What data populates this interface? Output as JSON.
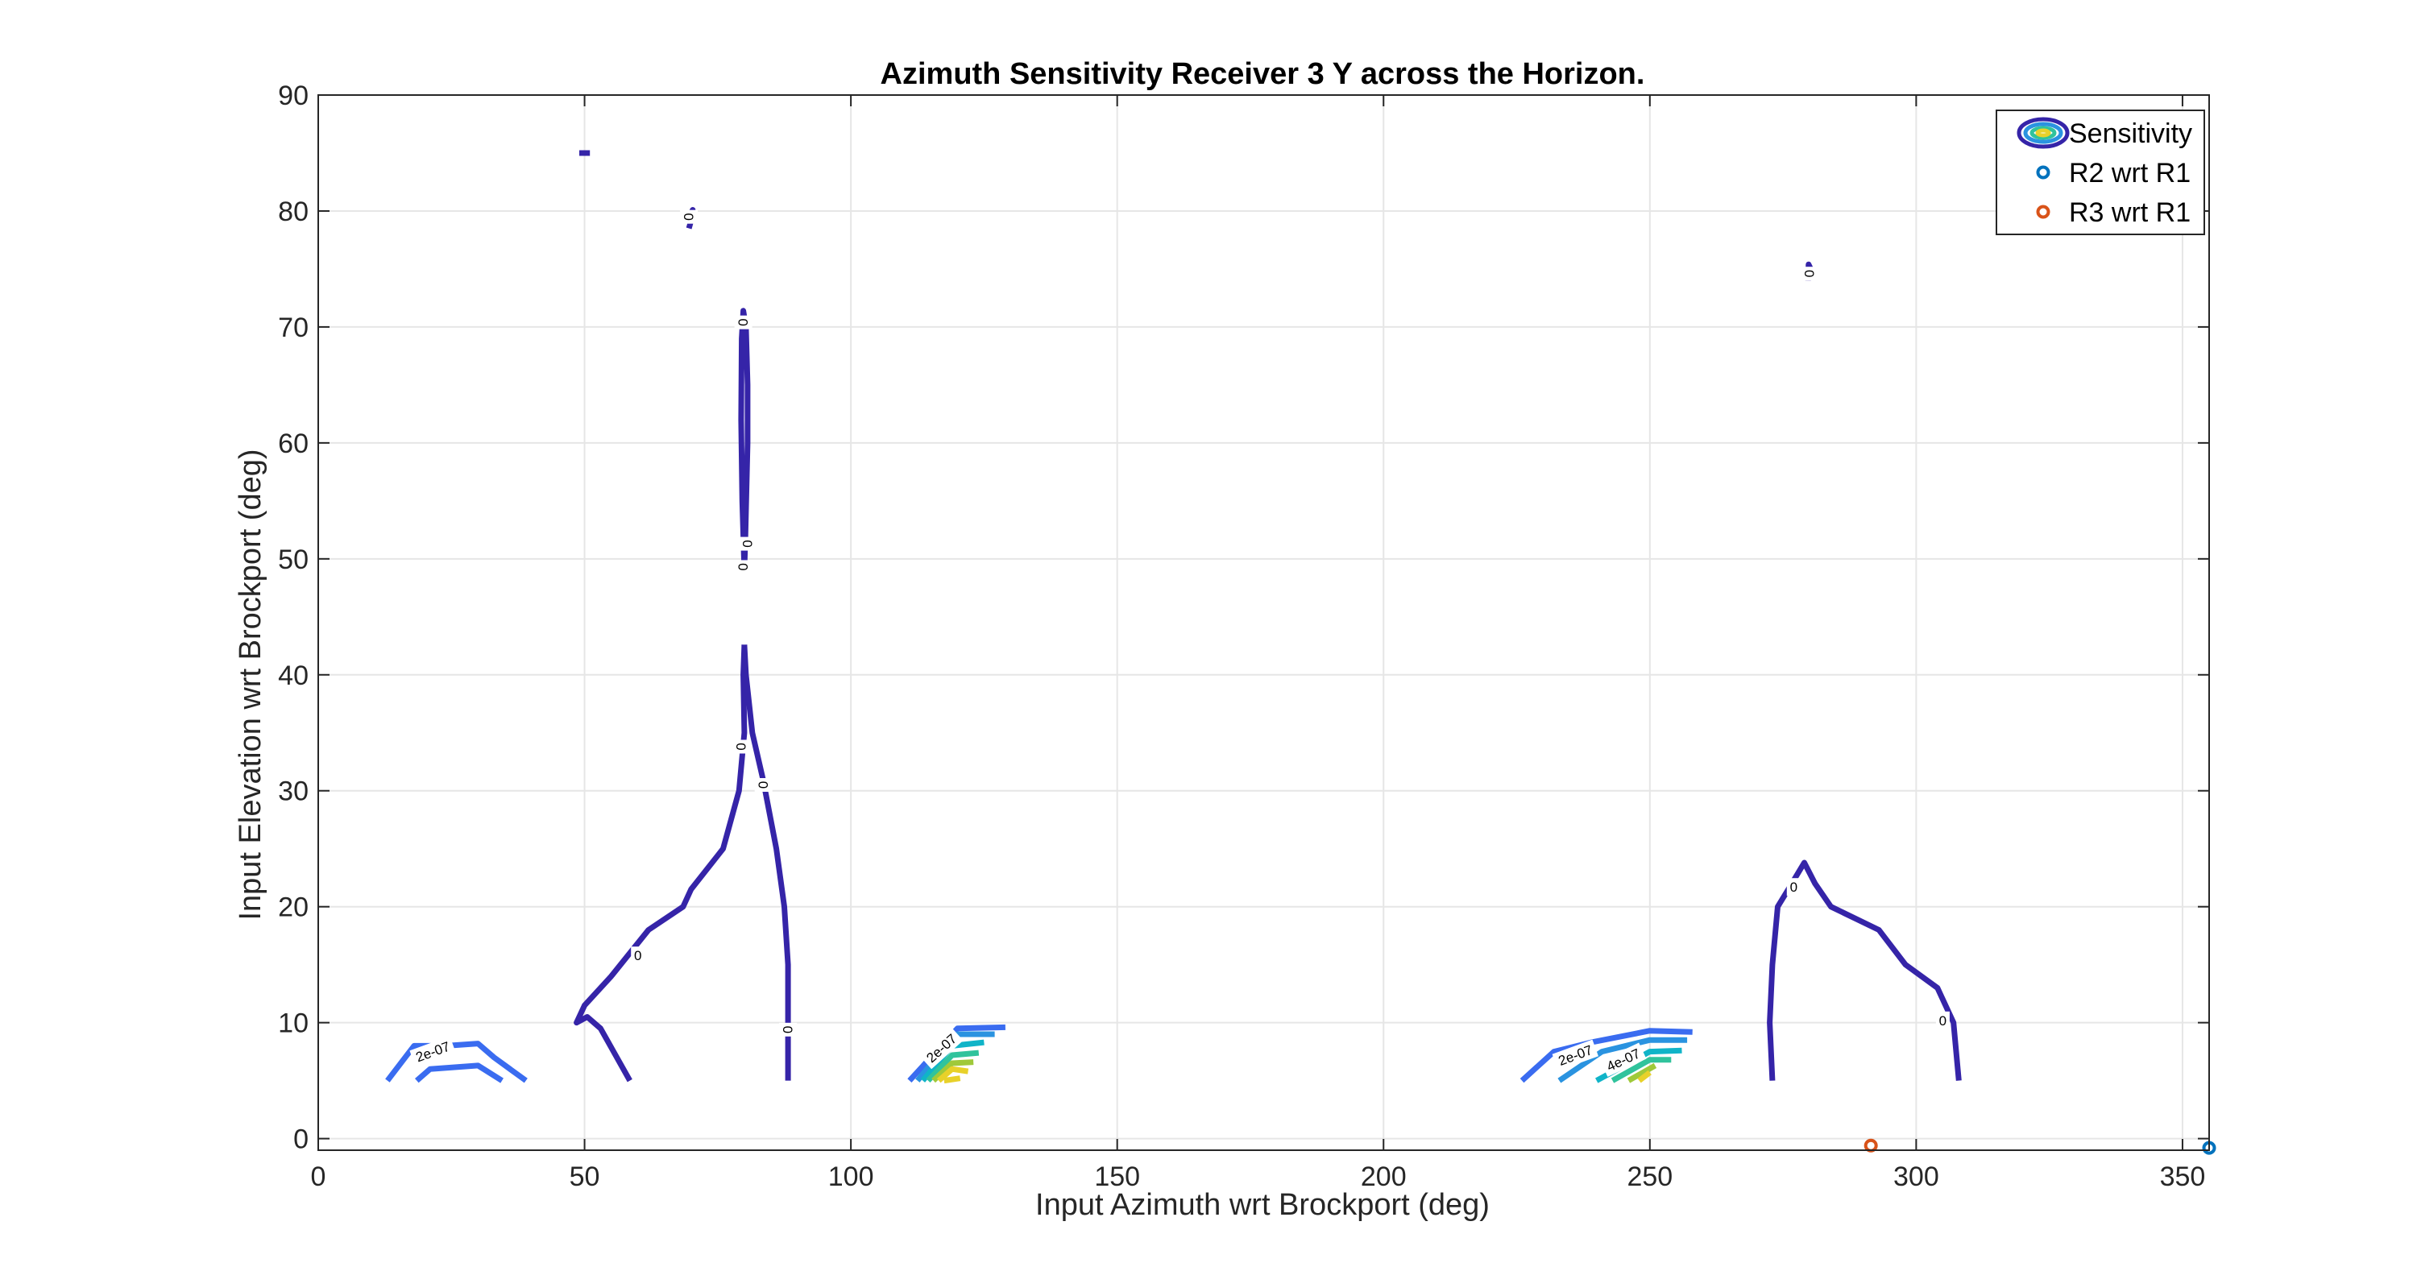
{
  "chart_data": {
    "type": "contour",
    "title": "Azimuth Sensitivity Receiver 3 Y across the Horizon.",
    "xlabel": "Input Azimuth wrt Brockport (deg)",
    "ylabel": "Input Elevation wrt Brockport (deg)",
    "xlim": [
      0,
      355
    ],
    "ylim": [
      -1,
      90
    ],
    "xticks": [
      0,
      50,
      100,
      150,
      200,
      250,
      300,
      350
    ],
    "yticks": [
      0,
      10,
      20,
      30,
      40,
      50,
      60,
      70,
      80,
      90
    ],
    "grid": true,
    "legend_position": "top-right",
    "legend": [
      {
        "name": "Sensitivity",
        "kind": "contour"
      },
      {
        "name": "R2 wrt R1",
        "kind": "marker",
        "color": "#0072BD"
      },
      {
        "name": "R3 wrt R1",
        "kind": "marker",
        "color": "#D95319"
      }
    ],
    "colors": {
      "zero": "#3524A8",
      "c1": "#3A6CF0",
      "c2": "#2A93E0",
      "c3": "#10B4C8",
      "c4": "#30C39C",
      "c5": "#9FC93A",
      "c6": "#E8D12A",
      "r2": "#0072BD",
      "r3": "#D95319"
    },
    "contours": [
      {
        "level": "0",
        "color_key": "zero",
        "points": [
          [
            49,
            85
          ],
          [
            51,
            85
          ]
        ]
      },
      {
        "level": "0",
        "color_key": "zero",
        "points": [
          [
            69.5,
            79.3
          ],
          [
            70.3,
            80.1
          ],
          [
            70.2,
            79.5
          ],
          [
            69.6,
            78.5
          ]
        ]
      },
      {
        "level": "0",
        "color_key": "zero",
        "points": [
          [
            80,
            49
          ],
          [
            80.2,
            52
          ],
          [
            80.6,
            60
          ],
          [
            80.6,
            65
          ],
          [
            80.3,
            70
          ],
          [
            79.8,
            71.4
          ],
          [
            79.5,
            69
          ],
          [
            79.4,
            62
          ],
          [
            79.6,
            55
          ],
          [
            80,
            49
          ]
        ]
      },
      {
        "level": "0",
        "color_key": "zero",
        "points": [
          [
            58.5,
            5
          ],
          [
            53,
            9.5
          ],
          [
            50.5,
            10.5
          ],
          [
            48.5,
            10
          ],
          [
            50,
            11.5
          ],
          [
            55,
            14
          ],
          [
            62,
            18
          ],
          [
            68.5,
            20
          ],
          [
            70,
            21.5
          ],
          [
            76,
            25
          ],
          [
            79,
            30
          ],
          [
            80,
            35
          ],
          [
            79.8,
            40
          ],
          [
            80,
            42.6
          ]
        ]
      },
      {
        "level": "0",
        "color_key": "zero",
        "points": [
          [
            80,
            42.6
          ],
          [
            80.3,
            40
          ],
          [
            81.5,
            35
          ],
          [
            83.5,
            31
          ],
          [
            86,
            25
          ],
          [
            87.5,
            20
          ],
          [
            88.2,
            15
          ],
          [
            88.2,
            10
          ],
          [
            88.2,
            5
          ]
        ]
      },
      {
        "level": "0",
        "color_key": "zero",
        "points": [
          [
            273,
            5
          ],
          [
            272.5,
            10
          ],
          [
            273,
            15
          ],
          [
            274,
            20
          ],
          [
            276,
            21.5
          ],
          [
            279,
            23.8
          ],
          [
            281,
            22
          ],
          [
            284,
            20
          ],
          [
            293,
            18
          ],
          [
            298,
            15
          ],
          [
            304,
            13
          ],
          [
            307,
            10
          ],
          [
            308,
            5
          ]
        ]
      },
      {
        "level": "0",
        "color_key": "zero",
        "points": [
          [
            279.7,
            74
          ],
          [
            279.8,
            75.4
          ],
          [
            280.2,
            75
          ],
          [
            280.2,
            74.2
          ]
        ]
      },
      {
        "level": "2e-07",
        "color_key": "c1",
        "points": [
          [
            13,
            5
          ],
          [
            18,
            8
          ],
          [
            24,
            8
          ],
          [
            30,
            8.2
          ],
          [
            33,
            7
          ],
          [
            39,
            5
          ]
        ]
      },
      {
        "level": "2e-07",
        "color_key": "c1",
        "points": [
          [
            18.5,
            5
          ],
          [
            21,
            6
          ],
          [
            30,
            6.3
          ],
          [
            34.5,
            5
          ]
        ]
      },
      {
        "level": "2e-07",
        "color_key": "c1",
        "points": [
          [
            111,
            5
          ],
          [
            116,
            7.5
          ],
          [
            120,
            9.5
          ],
          [
            129,
            9.6
          ]
        ]
      },
      {
        "level": "2e-07",
        "color_key": "c1",
        "points": [
          [
            226,
            5
          ],
          [
            232,
            7.5
          ],
          [
            239,
            8.3
          ],
          [
            250,
            9.3
          ],
          [
            258,
            9.2
          ]
        ]
      },
      {
        "level": "4e-07",
        "color_key": "c2",
        "points": [
          [
            112.5,
            5
          ],
          [
            117,
            7.5
          ],
          [
            120,
            9
          ],
          [
            127,
            9
          ]
        ]
      },
      {
        "level": "4e-07",
        "color_key": "c2",
        "points": [
          [
            233,
            5
          ],
          [
            241,
            7.5
          ],
          [
            250,
            8.5
          ],
          [
            257,
            8.5
          ]
        ]
      },
      {
        "level": "6e-07",
        "color_key": "c3",
        "points": [
          [
            113.5,
            5
          ],
          [
            119,
            8
          ],
          [
            125,
            8.3
          ]
        ]
      },
      {
        "level": "6e-07",
        "color_key": "c3",
        "points": [
          [
            240,
            5
          ],
          [
            246,
            6.5
          ],
          [
            250,
            7.5
          ],
          [
            256,
            7.6
          ]
        ]
      },
      {
        "level": "8e-07",
        "color_key": "c4",
        "points": [
          [
            114.5,
            5
          ],
          [
            119,
            7.2
          ],
          [
            124,
            7.4
          ]
        ]
      },
      {
        "level": "8e-07",
        "color_key": "c4",
        "points": [
          [
            243,
            5
          ],
          [
            250,
            6.8
          ],
          [
            254,
            6.8
          ]
        ]
      },
      {
        "level": "1e-06",
        "color_key": "c5",
        "points": [
          [
            115.5,
            5
          ],
          [
            119,
            6.5
          ],
          [
            123,
            6.6
          ]
        ]
      },
      {
        "level": "1e-06",
        "color_key": "c5",
        "points": [
          [
            246,
            5
          ],
          [
            251,
            6.3
          ]
        ]
      },
      {
        "level": "1.2e-06",
        "color_key": "c6",
        "points": [
          [
            116.5,
            5
          ],
          [
            119,
            6
          ],
          [
            122,
            5.8
          ]
        ]
      },
      {
        "level": "1.2e-06",
        "color_key": "c6",
        "points": [
          [
            248,
            5
          ],
          [
            250,
            5.7
          ]
        ]
      },
      {
        "level": "1.4e-06",
        "color_key": "c6",
        "points": [
          [
            117.5,
            5
          ],
          [
            120.5,
            5.2
          ]
        ]
      }
    ],
    "contour_labels": [
      {
        "text": "0",
        "x": 69.6,
        "y": 79.5,
        "angle": 90
      },
      {
        "text": "0",
        "x": 79.8,
        "y": 70.4,
        "angle": 90
      },
      {
        "text": "0",
        "x": 80.6,
        "y": 51.3,
        "angle": 90
      },
      {
        "text": "0",
        "x": 79.8,
        "y": 49.3,
        "angle": 90
      },
      {
        "text": "0",
        "x": 79.4,
        "y": 33.8,
        "angle": 90
      },
      {
        "text": "0",
        "x": 83.6,
        "y": 30.5,
        "angle": 90
      },
      {
        "text": "0",
        "x": 60,
        "y": 15.8,
        "angle": 0
      },
      {
        "text": "0",
        "x": 88.2,
        "y": 9.4,
        "angle": 90
      },
      {
        "text": "0",
        "x": 280,
        "y": 74.6,
        "angle": 90
      },
      {
        "text": "0",
        "x": 277,
        "y": 21.7,
        "angle": 0
      },
      {
        "text": "0",
        "x": 305,
        "y": 10.2,
        "angle": 0
      },
      {
        "text": "2e-07",
        "x": 21.5,
        "y": 7.5,
        "angle": -20
      },
      {
        "text": "2e-07",
        "x": 117,
        "y": 7.8,
        "angle": -42
      },
      {
        "text": "2e-07",
        "x": 236,
        "y": 7.2,
        "angle": -20
      },
      {
        "text": "4e-07",
        "x": 245,
        "y": 6.8,
        "angle": -25
      }
    ],
    "points": [
      {
        "name": "R2 wrt R1",
        "x": 355,
        "y": -0.8,
        "color_key": "r2"
      },
      {
        "name": "R3 wrt R1",
        "x": 291.5,
        "y": -0.6,
        "color_key": "r3"
      }
    ]
  }
}
